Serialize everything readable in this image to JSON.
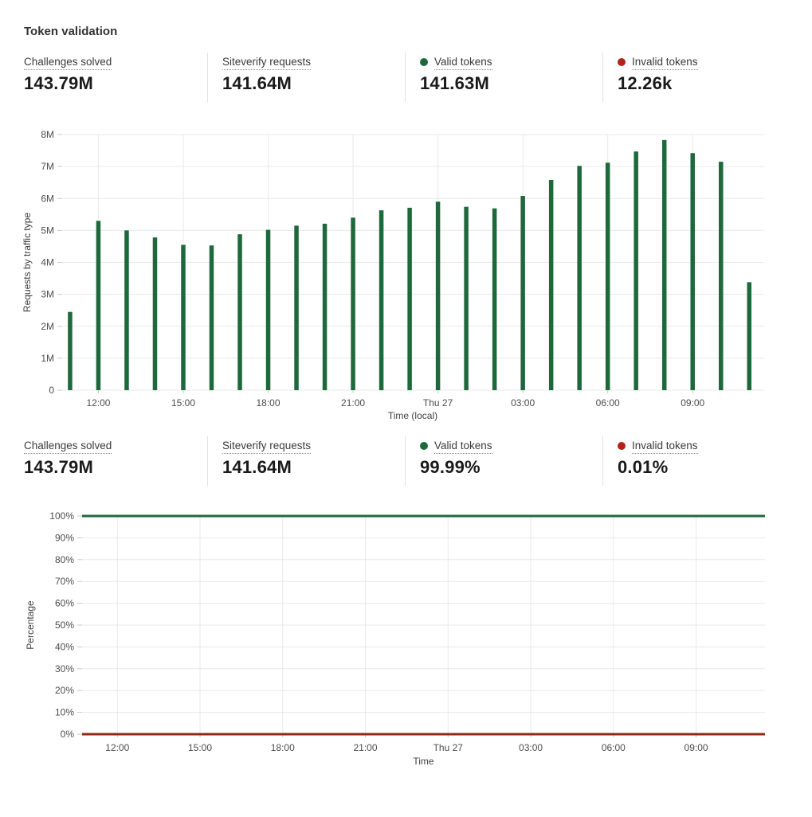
{
  "page": {
    "title": "Token validation"
  },
  "colors": {
    "valid_green": "#1e693c",
    "invalid_dot_red": "#b42318",
    "invalid_line_red": "#8c2b13",
    "grid": "#e9e9e9",
    "tick": "#c9c9c9"
  },
  "stats_top": {
    "items": [
      {
        "label": "Challenges solved",
        "value": "143.79M"
      },
      {
        "label": "Siteverify requests",
        "value": "141.64M"
      },
      {
        "label": "Valid tokens",
        "value": "141.63M",
        "dot": "green"
      },
      {
        "label": "Invalid tokens",
        "value": "12.26k",
        "dot": "red"
      }
    ]
  },
  "stats_bottom": {
    "items": [
      {
        "label": "Challenges solved",
        "value": "143.79M"
      },
      {
        "label": "Siteverify requests",
        "value": "141.64M"
      },
      {
        "label": "Valid tokens",
        "value": "99.99%",
        "dot": "green"
      },
      {
        "label": "Invalid tokens",
        "value": "0.01%",
        "dot": "red"
      }
    ]
  },
  "chart_data": [
    {
      "type": "bar",
      "title": "",
      "ylabel": "Requests by traffic type",
      "xlabel": "Time (local)",
      "unit": "millions of requests per hour",
      "x_hours": [
        11,
        12,
        13,
        14,
        15,
        16,
        17,
        18,
        19,
        20,
        21,
        22,
        23,
        24,
        25,
        26,
        27,
        28,
        29,
        30,
        31,
        32,
        33,
        34,
        35
      ],
      "values_millions": [
        2.45,
        5.3,
        5.0,
        4.78,
        4.55,
        4.53,
        4.88,
        5.02,
        5.15,
        5.21,
        5.4,
        5.63,
        5.71,
        5.9,
        5.74,
        5.69,
        6.08,
        6.58,
        7.02,
        7.12,
        7.47,
        7.83,
        7.42,
        7.15,
        3.38
      ],
      "x_tick_hours": [
        12,
        15,
        18,
        21,
        24,
        27,
        30,
        33
      ],
      "x_tick_labels": [
        "12:00",
        "15:00",
        "18:00",
        "21:00",
        "Thu 27",
        "03:00",
        "06:00",
        "09:00"
      ],
      "y_tick_labels": [
        "0",
        "1M",
        "2M",
        "3M",
        "4M",
        "5M",
        "6M",
        "7M",
        "8M"
      ],
      "ylim": [
        0,
        8
      ],
      "grid": true,
      "bar_color": "#1e693c"
    },
    {
      "type": "line",
      "title": "",
      "ylabel": "Percentage",
      "xlabel": "Time",
      "series": [
        {
          "name": "Valid tokens",
          "percent": 99.99,
          "color": "#1e693c"
        },
        {
          "name": "Invalid tokens",
          "percent": 0.01,
          "color": "#8c2b13"
        }
      ],
      "x_tick_hours": [
        12,
        15,
        18,
        21,
        24,
        27,
        30,
        33
      ],
      "x_tick_labels": [
        "12:00",
        "15:00",
        "18:00",
        "21:00",
        "Thu 27",
        "03:00",
        "06:00",
        "09:00"
      ],
      "y_tick_labels": [
        "0%",
        "10%",
        "20%",
        "30%",
        "40%",
        "50%",
        "60%",
        "70%",
        "80%",
        "90%",
        "100%"
      ],
      "ylim": [
        0,
        100
      ],
      "grid": true
    }
  ]
}
